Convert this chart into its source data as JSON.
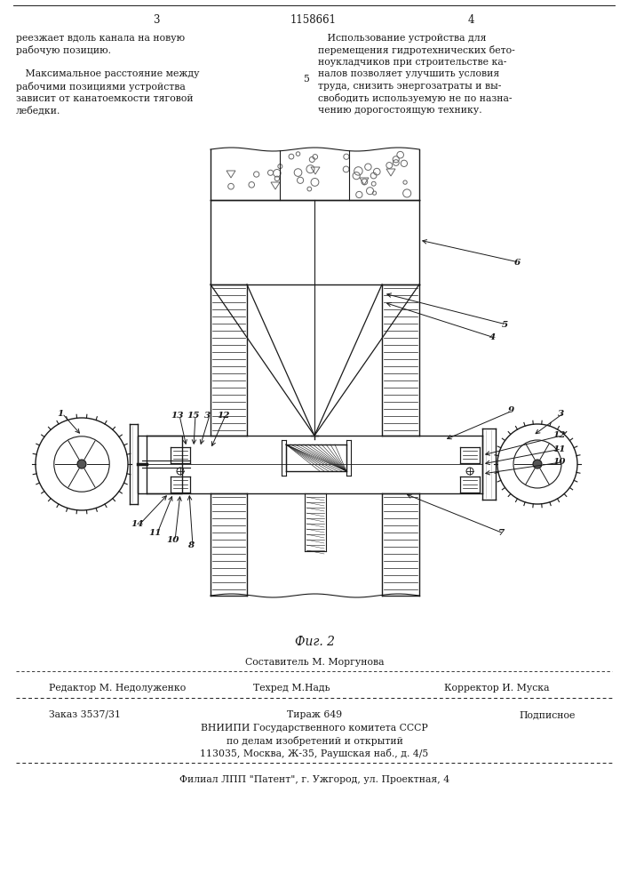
{
  "page_number_left": "3",
  "page_number_center": "1158661",
  "page_number_right": "4",
  "text_left_col": [
    "реезжает вдоль канала на новую",
    "рабочую позицию.",
    "",
    "   Максимальное расстояние между",
    "рабочими позициями устройства",
    "зависит от канатоемкости тяговой",
    "лебедки."
  ],
  "text_right_col": [
    "   Использование устройства для",
    "перемещения гидротехнических бето-",
    "ноукладчиков при строительстве ка-",
    "налов позволяет улучшить условия",
    "труда, снизить энергозатраты и вы-",
    "свободить используемую не по назна-",
    "чению дорогостоящую технику."
  ],
  "line_number": "5",
  "fig_caption": "Фиг. 2",
  "editor_line": "Редактор М. Недолуженко",
  "composer_line": "Составитель М. Моргунова",
  "techred_line": "Техред М.Надь",
  "corrector_line": "Корректор И. Муска",
  "order_line": "Заказ 3537/31",
  "tiraz_line": "Тираж 649",
  "podpisnoe_line": "Подписное",
  "vnipi_line1": "ВНИИПИ Государственного комитета СССР",
  "vnipi_line2": "по делам изобретений и открытий",
  "vnipi_line3": "113035, Москва, Ж-35, Раушская наб., д. 4/5",
  "filial_line": "Филиал ЛПП \"Патент\", г. Ужгород, ул. Проектная, 4",
  "bg_color": "#ffffff",
  "text_color": "#1a1a1a"
}
